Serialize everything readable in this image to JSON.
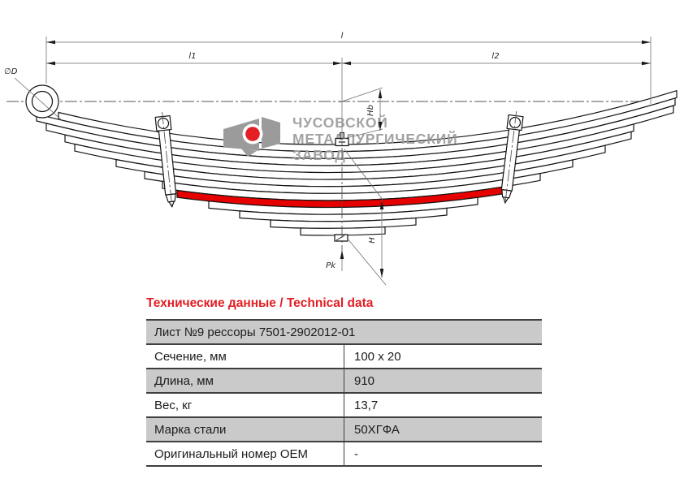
{
  "drawing": {
    "labels": {
      "total_length": "l",
      "front_length": "l1",
      "rear_length": "l2",
      "eye_diameter": "∅D",
      "arc_height": "Hb",
      "free_height": "H",
      "load": "Pk"
    },
    "highlight_color": "#e60000"
  },
  "logo": {
    "line1": "ЧУСОВСКОЙ",
    "line2": "МЕТАЛЛУРГИЧЕСКИЙ",
    "line3": "ЗАВОД",
    "color": "#9b9b9b",
    "accent": "#e31e24"
  },
  "table": {
    "title": "Технические данные / Technical data",
    "title_color": "#e31e24",
    "header": "Лист №9 рессоры 7501-2902012-01",
    "rows": [
      {
        "label": "Сечение, мм",
        "value": "100 x 20"
      },
      {
        "label": "Длина, мм",
        "value": "910"
      },
      {
        "label": "Вес, кг",
        "value": "13,7"
      },
      {
        "label": "Марка стали",
        "value": "50ХГФА"
      },
      {
        "label": "Оригинальный номер OEM",
        "value": "-"
      }
    ]
  }
}
